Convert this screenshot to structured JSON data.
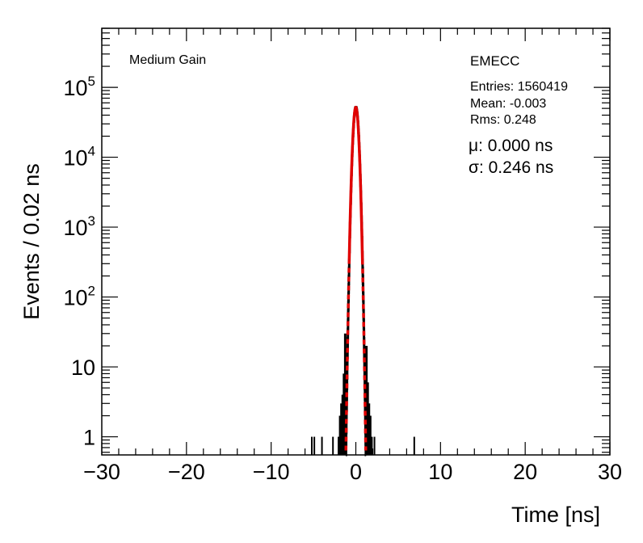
{
  "chart_data": {
    "type": "histogram",
    "xlabel": "Time [ns]",
    "ylabel": "Events / 0.02 ns",
    "xlim": [
      -30,
      30
    ],
    "ylim": [
      0.55,
      700000
    ],
    "yscale": "log",
    "bin_width": 0.02,
    "x_ticks": [
      -30,
      -20,
      -10,
      0,
      10,
      20,
      30
    ],
    "x_tick_labels": [
      "−30",
      "−20",
      "−10",
      "0",
      "10",
      "20",
      "30"
    ],
    "y_ticks": [
      1,
      10,
      100,
      1000,
      10000,
      100000
    ],
    "y_tick_labels": [
      {
        "base": "1",
        "exp": ""
      },
      {
        "base": "10",
        "exp": ""
      },
      {
        "base": "10",
        "exp": "2"
      },
      {
        "base": "10",
        "exp": "3"
      },
      {
        "base": "10",
        "exp": "4"
      },
      {
        "base": "10",
        "exp": "5"
      }
    ],
    "annotations": {
      "gain": "Medium Gain",
      "region": "EMECC",
      "entries": "Entries: 1560419",
      "mean": "Mean: -0.003",
      "rms": "Rms: 0.248",
      "mu": "μ: 0.000 ns",
      "sigma": "σ: 0.246 ns"
    },
    "fit": {
      "type": "gaussian",
      "mu": 0.0,
      "sigma": 0.246,
      "peak": 52000,
      "color": "#e00000"
    },
    "histogram_color": "#000000",
    "outliers": [
      {
        "x": -5.2,
        "y": 1
      },
      {
        "x": -4.9,
        "y": 1
      },
      {
        "x": -4.0,
        "y": 1
      },
      {
        "x": -2.7,
        "y": 1
      },
      {
        "x": 2.2,
        "y": 1
      },
      {
        "x": 6.9,
        "y": 1
      }
    ],
    "tail_bars": [
      {
        "x": -2.0,
        "y": 1
      },
      {
        "x": -1.85,
        "y": 2
      },
      {
        "x": -1.7,
        "y": 3
      },
      {
        "x": -1.55,
        "y": 4
      },
      {
        "x": -1.4,
        "y": 8
      },
      {
        "x": -1.25,
        "y": 30
      },
      {
        "x": 1.25,
        "y": 20
      },
      {
        "x": 1.4,
        "y": 6
      },
      {
        "x": 1.55,
        "y": 3
      },
      {
        "x": 1.7,
        "y": 2
      },
      {
        "x": 1.85,
        "y": 1
      }
    ]
  }
}
